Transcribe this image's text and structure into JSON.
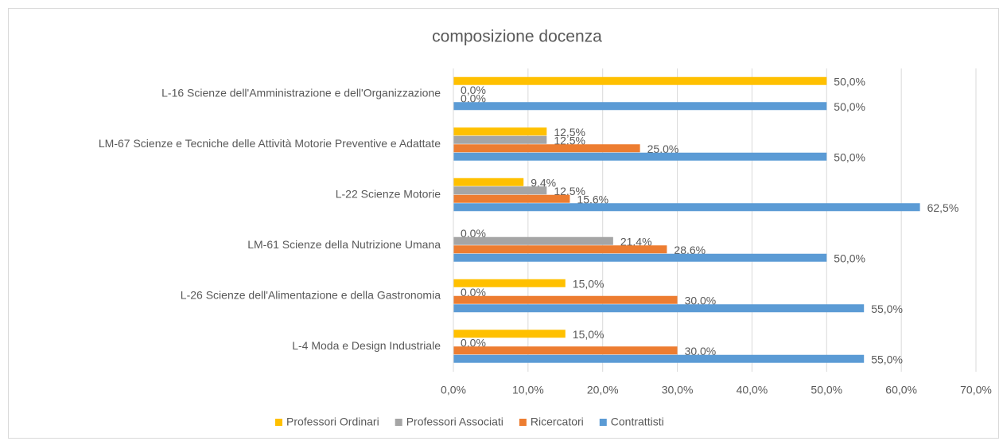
{
  "chart_data": {
    "type": "hbar",
    "title": "composizione docenza",
    "categories": [
      "L-16 Scienze dell'Amministrazione e dell'Organizzazione",
      "LM-67 Scienze e Tecniche delle Attività Motorie Preventive e Adattate",
      "L-22 Scienze Motorie",
      "LM-61 Scienze della Nutrizione Umana",
      "L-26 Scienze dell'Alimentazione e della Gastronomia",
      "L-4 Moda e Design Industriale"
    ],
    "series": [
      {
        "name": "Professori Ordinari",
        "color": "#FFC000",
        "values": [
          50,
          12.5,
          9.4,
          0,
          15,
          15
        ],
        "value_labels": [
          "50,0%",
          "12,5%",
          "9,4%",
          "0,0%",
          "15,0%",
          "15,0%"
        ]
      },
      {
        "name": "Professori  Associati",
        "color": "#A5A5A5",
        "values": [
          0,
          12.5,
          12.5,
          21.4,
          0,
          0
        ],
        "value_labels": [
          "0,0%",
          "12,5%",
          "12,5%",
          "21,4%",
          "0,0%",
          "0,0%"
        ]
      },
      {
        "name": "Ricercatori",
        "color": "#ED7D31",
        "values": [
          0,
          25,
          15.6,
          28.6,
          30,
          30
        ],
        "value_labels": [
          "0,0%",
          "25,0%",
          "15,6%",
          "28,6%",
          "30,0%",
          "30,0%"
        ]
      },
      {
        "name": "Contrattisti",
        "color": "#5B9BD5",
        "values": [
          50,
          50,
          62.5,
          50,
          55,
          55
        ],
        "value_labels": [
          "50,0%",
          "50,0%",
          "62,5%",
          "50,0%",
          "55,0%",
          "55,0%"
        ]
      }
    ],
    "xlim": [
      0,
      70
    ],
    "xticks": [
      {
        "value": 0,
        "label": "0,0%"
      },
      {
        "value": 10,
        "label": "10,0%"
      },
      {
        "value": 20,
        "label": "20,0%"
      },
      {
        "value": 30,
        "label": "30,0%"
      },
      {
        "value": 40,
        "label": "40,0%"
      },
      {
        "value": 50,
        "label": "50,0%"
      },
      {
        "value": 60,
        "label": "60,0%"
      },
      {
        "value": 70,
        "label": "70,0%"
      }
    ],
    "grid": true,
    "legend": "bottom"
  }
}
